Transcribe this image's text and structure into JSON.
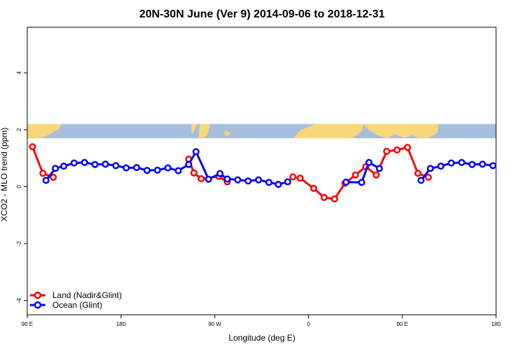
{
  "colors": {
    "land": "#ff0000",
    "ocean": "#0000ff",
    "map_ocean": "#a7bddc",
    "map_land": "#f7d77a"
  },
  "chart_data": {
    "type": "line",
    "title": "20N-30N June (Ver 9)   2014-09-06 to 2018-12-31",
    "xlabel": "Longitude (deg E)",
    "ylabel": "XCO2 - MLO trend (ppm)",
    "xlim": [
      90,
      540
    ],
    "ylim": [
      -4.5,
      5.6
    ],
    "x_ticks": [
      {
        "value": 90,
        "label": "90 E"
      },
      {
        "value": 180,
        "label": "180"
      },
      {
        "value": 270,
        "label": "90 W"
      },
      {
        "value": 360,
        "label": "0"
      },
      {
        "value": 450,
        "label": "90 E"
      },
      {
        "value": 540,
        "label": "180"
      }
    ],
    "y_ticks": [
      {
        "value": -4,
        "label": "-4"
      },
      {
        "value": -2,
        "label": "-2"
      },
      {
        "value": 0,
        "label": "0"
      },
      {
        "value": 2,
        "label": "2"
      },
      {
        "value": 4,
        "label": "4"
      }
    ],
    "legend_position": "bottom-left",
    "map_band": {
      "y_from": 1.7,
      "y_to": 2.2
    },
    "series": [
      {
        "name": "Land (Nadir&Glint)",
        "segments": [
          [
            [
              95,
              1.4
            ],
            [
              105,
              0.47
            ],
            [
              115,
              0.33
            ]
          ],
          [
            [
              245,
              0.97
            ],
            [
              250,
              0.48
            ],
            [
              257,
              0.28
            ],
            [
              274,
              0.36
            ],
            [
              282,
              0.17
            ]
          ],
          [
            [
              345,
              0.34
            ],
            [
              352,
              0.3
            ],
            [
              365,
              -0.06
            ],
            [
              375,
              -0.38
            ],
            [
              385,
              -0.43
            ],
            [
              395,
              0.12
            ],
            [
              405,
              0.41
            ],
            [
              415,
              0.7
            ],
            [
              425,
              0.41
            ],
            [
              435,
              1.24
            ],
            [
              445,
              1.29
            ],
            [
              455,
              1.38
            ],
            [
              465,
              0.47
            ],
            [
              475,
              0.33
            ]
          ]
        ]
      },
      {
        "name": "Ocean (Glint)",
        "segments": [
          [
            [
              108,
              0.22
            ],
            [
              117,
              0.64
            ],
            [
              125,
              0.72
            ],
            [
              135,
              0.83
            ],
            [
              145,
              0.85
            ],
            [
              155,
              0.78
            ],
            [
              165,
              0.79
            ],
            [
              175,
              0.74
            ],
            [
              185,
              0.66
            ],
            [
              195,
              0.67
            ],
            [
              205,
              0.57
            ],
            [
              215,
              0.58
            ],
            [
              225,
              0.66
            ],
            [
              235,
              0.56
            ],
            [
              245,
              0.78
            ],
            [
              252,
              1.23
            ],
            [
              264,
              0.26
            ],
            [
              275,
              0.46
            ],
            [
              282,
              0.27
            ],
            [
              292,
              0.24
            ],
            [
              302,
              0.2
            ],
            [
              312,
              0.24
            ],
            [
              322,
              0.15
            ],
            [
              331,
              0.08
            ],
            [
              340,
              0.17
            ]
          ],
          [
            [
              396,
              0.16
            ],
            [
              411,
              0.15
            ],
            [
              418,
              0.85
            ],
            [
              428,
              0.64
            ]
          ],
          [
            [
              468,
              0.22
            ],
            [
              477,
              0.64
            ],
            [
              487,
              0.72
            ],
            [
              497,
              0.83
            ],
            [
              507,
              0.85
            ],
            [
              517,
              0.78
            ],
            [
              527,
              0.79
            ],
            [
              537,
              0.74
            ]
          ]
        ]
      }
    ]
  }
}
